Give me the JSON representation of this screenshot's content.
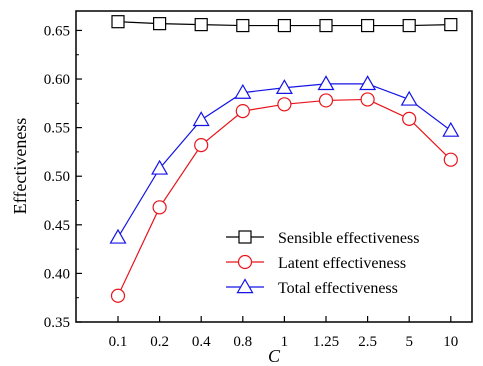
{
  "chart_data": {
    "type": "line",
    "xlabel": "C",
    "ylabel": "Effectiveness",
    "categories": [
      "0.1",
      "0.2",
      "0.4",
      "0.8",
      "1",
      "1.25",
      "2.5",
      "5",
      "10"
    ],
    "ylim": [
      0.35,
      0.67
    ],
    "yticks": [
      "0.35",
      "0.40",
      "0.45",
      "0.50",
      "0.55",
      "0.60",
      "0.65"
    ],
    "grid": false,
    "legend_position": "bottom-right",
    "series": [
      {
        "name": "Sensible effectiveness",
        "color": "#000000",
        "marker": "square",
        "values": [
          0.659,
          0.657,
          0.656,
          0.655,
          0.655,
          0.655,
          0.655,
          0.655,
          0.656
        ]
      },
      {
        "name": "Latent effectiveness",
        "color": "#e8141b",
        "marker": "circle",
        "values": [
          0.377,
          0.468,
          0.532,
          0.567,
          0.574,
          0.578,
          0.579,
          0.559,
          0.517
        ]
      },
      {
        "name": "Total effectiveness",
        "color": "#1414e6",
        "marker": "triangle",
        "values": [
          0.437,
          0.508,
          0.558,
          0.586,
          0.591,
          0.595,
          0.595,
          0.579,
          0.547
        ]
      }
    ]
  }
}
